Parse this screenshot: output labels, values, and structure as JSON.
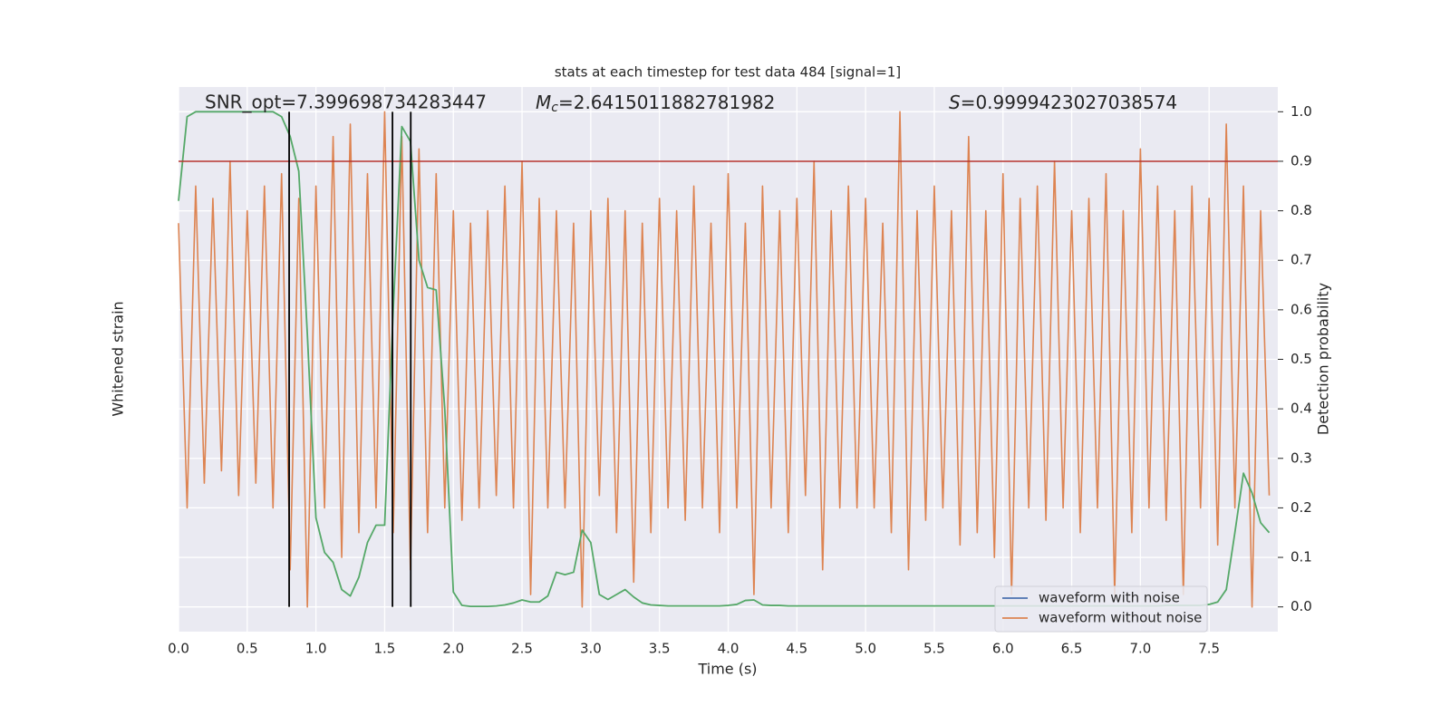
{
  "chart_data": {
    "type": "line",
    "title": "stats at each timestep for test data 484 [signal=1]",
    "xlabel": "Time (s)",
    "ylabel": "Whitened strain",
    "y2label": "Detection probability",
    "annotations": {
      "snr": "SNR_opt=7.399698734283447",
      "mc": {
        "symbol": "M",
        "sub": "c",
        "text": "=2.6415011882781982"
      },
      "s": {
        "symbol": "S",
        "text": "=0.9999423027038574"
      }
    },
    "xlim": [
      0,
      8
    ],
    "xticks": [
      {
        "value": 0,
        "label": "0.0"
      },
      0.5,
      {
        "value": 1,
        "label": "1.0"
      },
      1.5,
      {
        "value": 2,
        "label": "2.0"
      },
      2.5,
      {
        "value": 3,
        "label": "3.0"
      },
      3.5,
      {
        "value": 4,
        "label": "4.0"
      },
      4.5,
      {
        "value": 5,
        "label": "5.0"
      },
      5.5,
      {
        "value": 6,
        "label": "6.0"
      },
      6.5,
      {
        "value": 7,
        "label": "7.0"
      },
      7.5
    ],
    "ylim": [
      -1.1,
      1.1
    ],
    "y2lim": [
      -0.05,
      1.05
    ],
    "y2ticks": [
      {
        "value": 0,
        "label": "0.0"
      },
      0.1,
      0.2,
      0.3,
      0.4,
      0.5,
      0.6,
      0.7,
      0.8,
      0.9,
      {
        "value": 1,
        "label": "1.0"
      }
    ],
    "grid": true,
    "legend": "lower right",
    "x": [
      0,
      0.0625,
      0.125,
      0.1875,
      0.25,
      0.3125,
      0.375,
      0.4375,
      0.5,
      0.5625,
      0.625,
      0.6875,
      0.75,
      0.8125,
      0.875,
      0.9375,
      1,
      1.0625,
      1.125,
      1.1875,
      1.25,
      1.3125,
      1.375,
      1.4375,
      1.5,
      1.5625,
      1.625,
      1.6875,
      1.75,
      1.8125,
      1.875,
      1.9375,
      2,
      2.0625,
      2.125,
      2.1875,
      2.25,
      2.3125,
      2.375,
      2.4375,
      2.5,
      2.5625,
      2.625,
      2.6875,
      2.75,
      2.8125,
      2.875,
      2.9375,
      3,
      3.0625,
      3.125,
      3.1875,
      3.25,
      3.3125,
      3.375,
      3.4375,
      3.5,
      3.5625,
      3.625,
      3.6875,
      3.75,
      3.8125,
      3.875,
      3.9375,
      4,
      4.0625,
      4.125,
      4.1875,
      4.25,
      4.3125,
      4.375,
      4.4375,
      4.5,
      4.5625,
      4.625,
      4.6875,
      4.75,
      4.8125,
      4.875,
      4.9375,
      5,
      5.0625,
      5.125,
      5.1875,
      5.25,
      5.3125,
      5.375,
      5.4375,
      5.5,
      5.5625,
      5.625,
      5.6875,
      5.75,
      5.8125,
      5.875,
      5.9375,
      6,
      6.0625,
      6.125,
      6.1875,
      6.25,
      6.3125,
      6.375,
      6.4375,
      6.5,
      6.5625,
      6.625,
      6.6875,
      6.75,
      6.8125,
      6.875,
      6.9375,
      7,
      7.0625,
      7.125,
      7.1875,
      7.25,
      7.3125,
      7.375,
      7.4375,
      7.5,
      7.5625,
      7.625,
      7.6875,
      7.75,
      7.8125,
      7.875,
      7.9375
    ],
    "series": [
      {
        "name": "waveform with noise",
        "color": "#4c72b0"
      },
      {
        "name": "waveform without noise",
        "color": "#dd8452",
        "values": [
          0.55,
          -0.6,
          0.7,
          -0.5,
          0.65,
          -0.45,
          0.8,
          -0.55,
          0.6,
          -0.5,
          0.7,
          -0.6,
          0.75,
          -0.85,
          0.65,
          -1.0,
          0.7,
          -0.6,
          0.9,
          -0.8,
          0.95,
          -0.7,
          0.75,
          -0.6,
          1.0,
          -0.7,
          0.9,
          -0.85,
          0.85,
          -0.7,
          0.75,
          -0.6,
          0.6,
          -0.65,
          0.55,
          -0.6,
          0.6,
          -0.55,
          0.7,
          -0.6,
          0.8,
          -0.95,
          0.65,
          -0.6,
          0.6,
          -0.6,
          0.55,
          -1.0,
          0.6,
          -0.55,
          0.65,
          -0.7,
          0.6,
          -0.9,
          0.55,
          -0.7,
          0.65,
          -0.6,
          0.6,
          -0.65,
          0.7,
          -0.6,
          0.55,
          -0.7,
          0.75,
          -0.6,
          0.55,
          -0.95,
          0.7,
          -0.6,
          0.6,
          -0.7,
          0.65,
          -0.55,
          0.8,
          -0.85,
          0.6,
          -0.6,
          0.7,
          -0.6,
          0.65,
          -0.6,
          0.55,
          -0.7,
          1.0,
          -0.85,
          0.6,
          -0.65,
          0.7,
          -0.6,
          0.6,
          -0.75,
          0.9,
          -0.7,
          0.6,
          -0.8,
          0.75,
          -0.95,
          0.65,
          -0.6,
          0.7,
          -0.65,
          0.8,
          -0.6,
          0.6,
          -0.7,
          0.65,
          -0.6,
          0.75,
          -0.95,
          0.6,
          -0.7,
          0.85,
          -0.6,
          0.7,
          -0.65,
          0.6,
          -0.95,
          0.7,
          -0.6,
          0.65,
          -0.75,
          0.95,
          -0.6,
          0.7,
          -1.0,
          0.6,
          -0.55
        ]
      },
      {
        "color": "#55a868",
        "axis": "y2",
        "values": [
          0.82,
          0.99,
          1.0,
          1.0,
          1.0,
          1.0,
          1.0,
          1.0,
          1.0,
          1.0,
          1.0,
          1.0,
          0.99,
          0.95,
          0.88,
          0.55,
          0.18,
          0.11,
          0.09,
          0.035,
          0.022,
          0.06,
          0.13,
          0.165,
          0.165,
          0.6,
          0.97,
          0.94,
          0.7,
          0.645,
          0.64,
          0.4,
          0.03,
          0.003,
          0.001,
          0.001,
          0.001,
          0.002,
          0.004,
          0.008,
          0.014,
          0.01,
          0.01,
          0.022,
          0.07,
          0.065,
          0.07,
          0.155,
          0.13,
          0.025,
          0.015,
          0.025,
          0.035,
          0.02,
          0.008,
          0.004,
          0.003,
          0.002,
          0.002,
          0.002,
          0.002,
          0.002,
          0.002,
          0.002,
          0.003,
          0.005,
          0.013,
          0.014,
          0.004,
          0.003,
          0.003,
          0.002,
          0.002,
          0.002,
          0.002,
          0.002,
          0.002,
          0.002,
          0.002,
          0.002,
          0.002,
          0.002,
          0.002,
          0.002,
          0.002,
          0.002,
          0.002,
          0.002,
          0.002,
          0.002,
          0.002,
          0.002,
          0.002,
          0.002,
          0.002,
          0.002,
          0.002,
          0.002,
          0.002,
          0.002,
          0.002,
          0.002,
          0.002,
          0.002,
          0.002,
          0.002,
          0.002,
          0.002,
          0.002,
          0.002,
          0.002,
          0.002,
          0.002,
          0.002,
          0.002,
          0.003,
          0.003,
          0.003,
          0.003,
          0.003,
          0.005,
          0.01,
          0.035,
          0.15,
          0.27,
          0.23,
          0.17,
          0.15
        ]
      }
    ],
    "threshold": {
      "value": 0.9,
      "color": "#b5332e"
    },
    "vlines": {
      "x": [
        0.805,
        1.557,
        1.69
      ],
      "ymin": 0,
      "ymax": 1,
      "color": "#000000"
    }
  }
}
